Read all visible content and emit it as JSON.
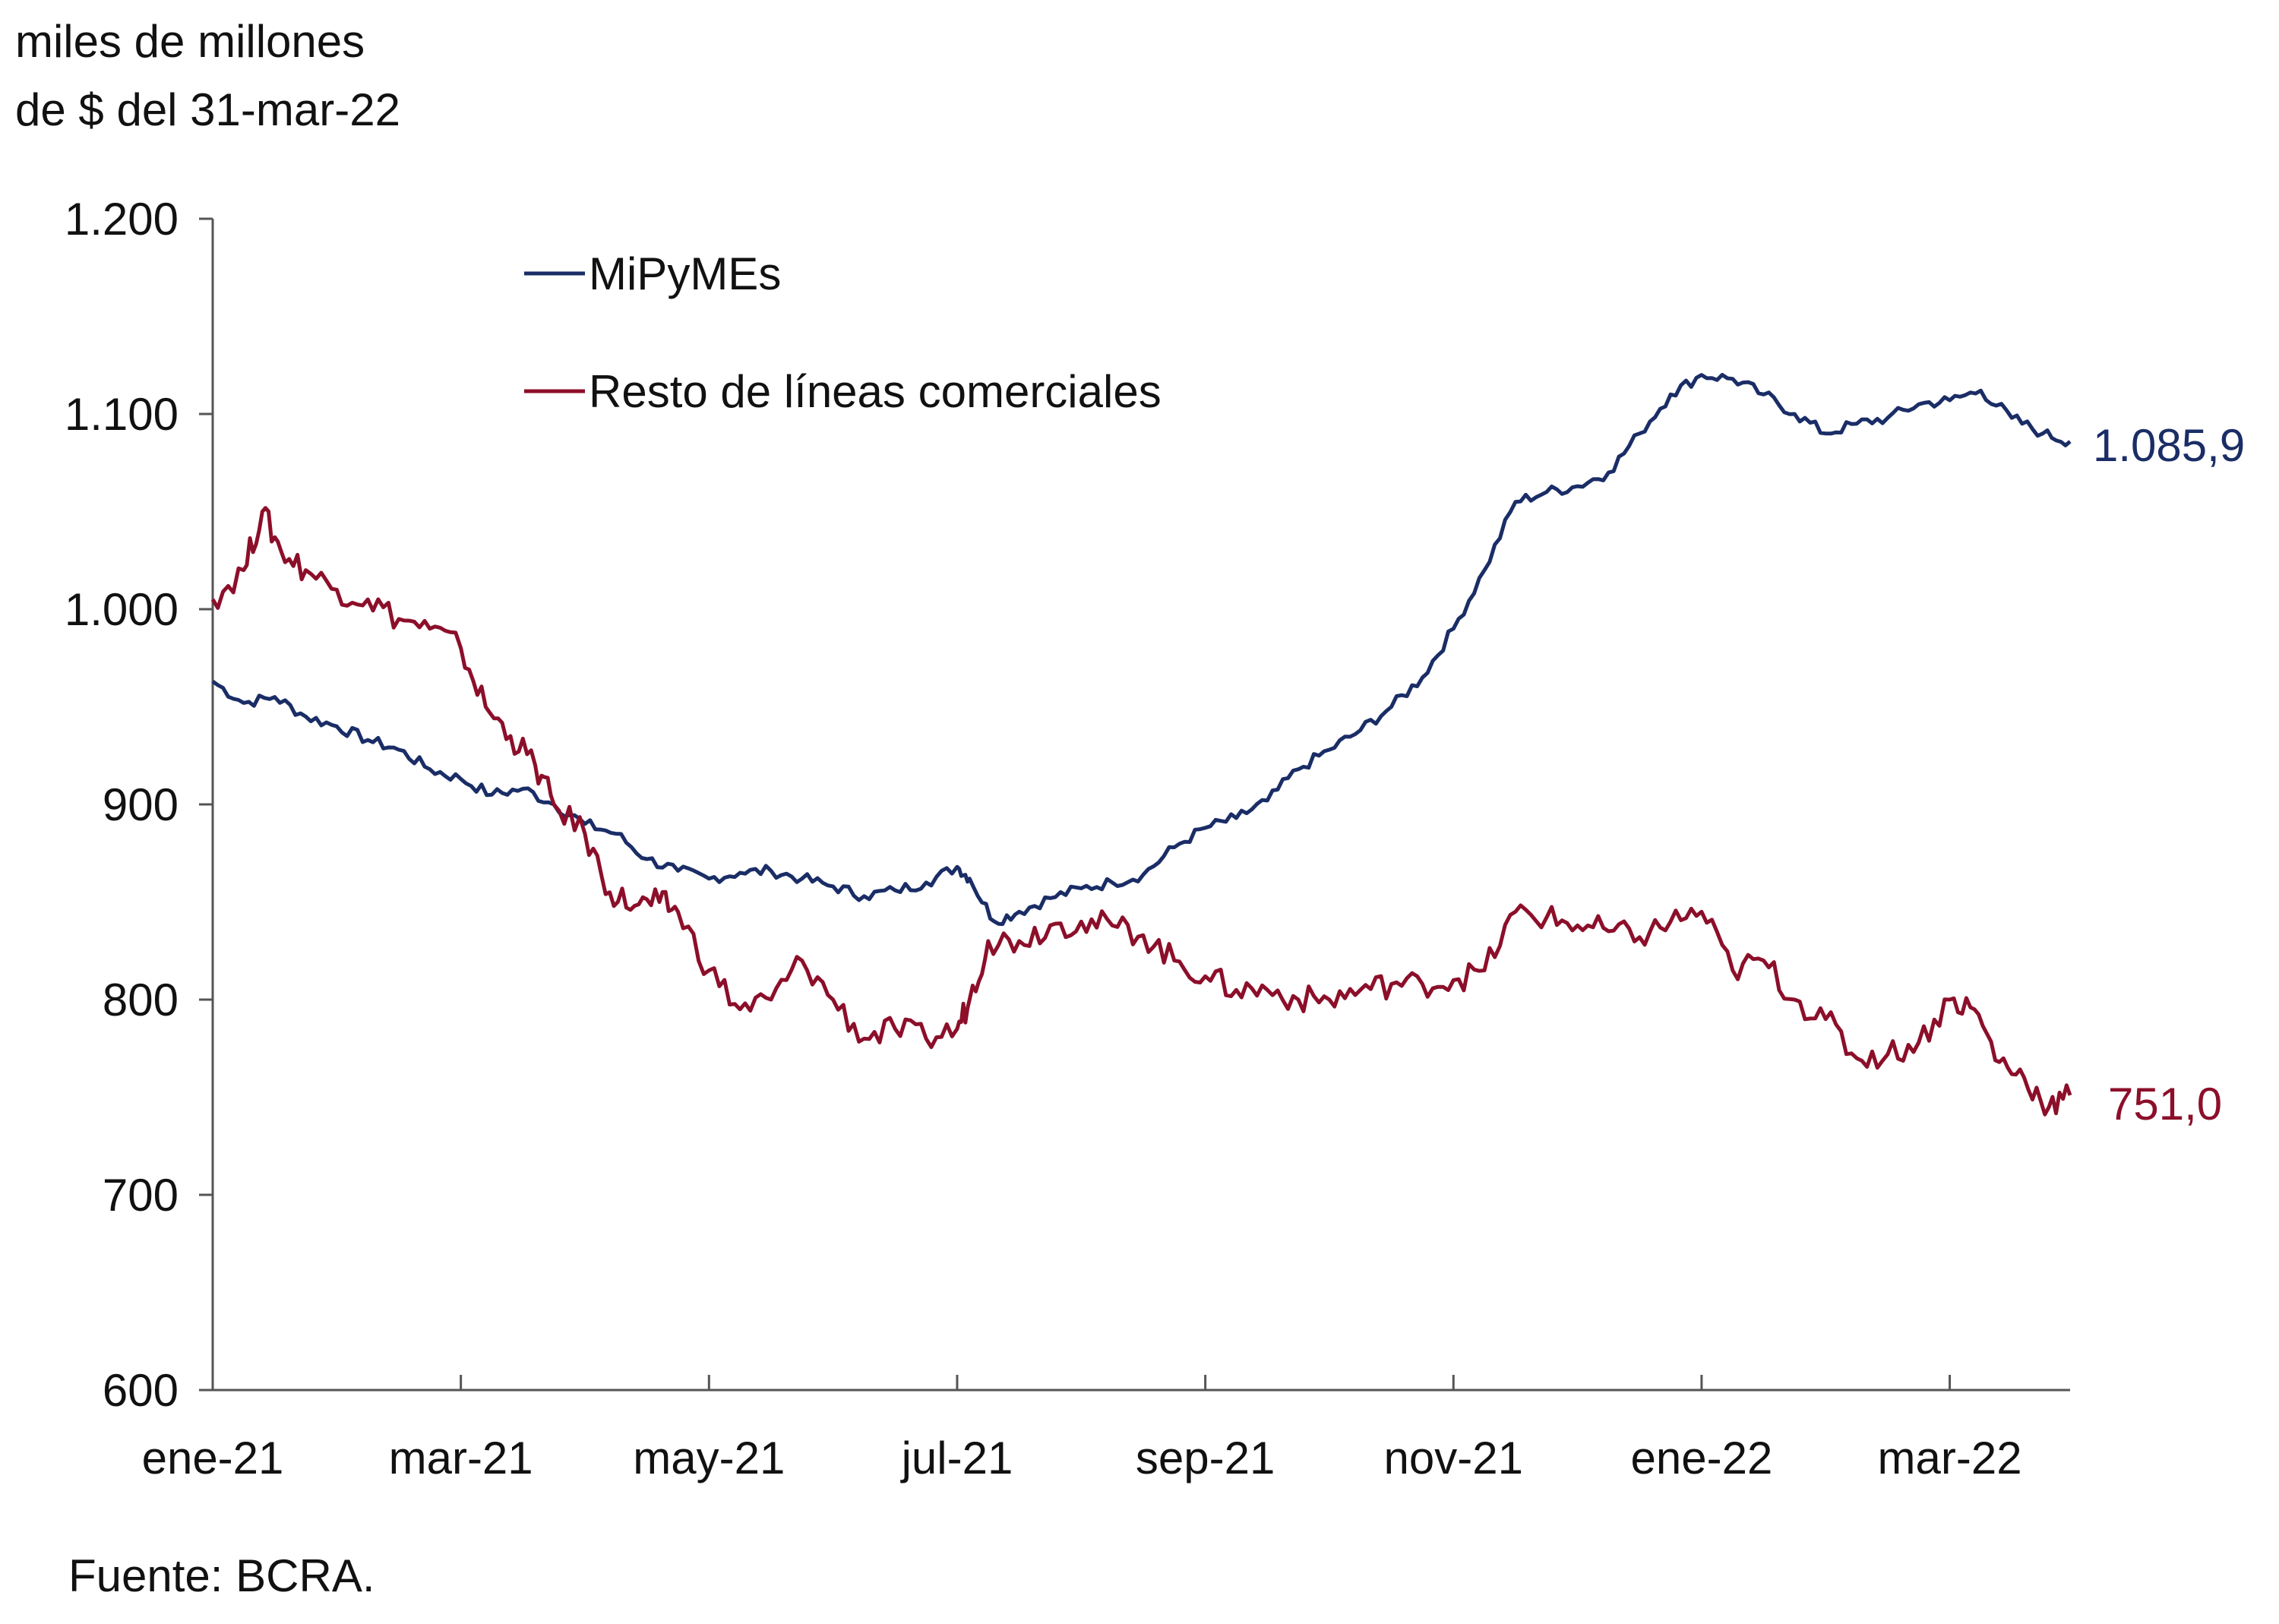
{
  "chart_data": {
    "type": "line",
    "title": "",
    "ylabel_line1": "miles de millones",
    "ylabel_line2": "de $ del 31-mar-22",
    "xlabel": "",
    "ylim": [
      600,
      1200
    ],
    "y_ticks": [
      600,
      700,
      800,
      900,
      1000,
      1100,
      1200
    ],
    "y_tick_labels": [
      "600",
      "700",
      "800",
      "900",
      "1.000",
      "1.100",
      "1.200"
    ],
    "x_range_months": [
      0,
      14.97
    ],
    "x_ticks": [
      {
        "month": 0,
        "label": "ene-21"
      },
      {
        "month": 2,
        "label": "mar-21"
      },
      {
        "month": 4,
        "label": "may-21"
      },
      {
        "month": 6,
        "label": "jul-21"
      },
      {
        "month": 8,
        "label": "sep-21"
      },
      {
        "month": 10,
        "label": "nov-21"
      },
      {
        "month": 12,
        "label": "ene-22"
      },
      {
        "month": 14,
        "label": "mar-22"
      }
    ],
    "legend": [
      "MiPyMEs",
      "Resto de líneas comerciales"
    ],
    "legend_position": "top-left",
    "series": [
      {
        "name": "MiPyMEs",
        "color": "#1a2d66",
        "end_label": "1.085,9",
        "points": [
          [
            0.0,
            963
          ],
          [
            0.25,
            952
          ],
          [
            0.5,
            955
          ],
          [
            0.75,
            945
          ],
          [
            1.0,
            940
          ],
          [
            1.25,
            933
          ],
          [
            1.5,
            928
          ],
          [
            1.75,
            918
          ],
          [
            2.0,
            913
          ],
          [
            2.25,
            905
          ],
          [
            2.5,
            908
          ],
          [
            2.75,
            900
          ],
          [
            3.0,
            890
          ],
          [
            3.25,
            885
          ],
          [
            3.5,
            872
          ],
          [
            3.75,
            866
          ],
          [
            4.0,
            862
          ],
          [
            4.25,
            865
          ],
          [
            4.5,
            866
          ],
          [
            4.75,
            862
          ],
          [
            5.0,
            858
          ],
          [
            5.25,
            853
          ],
          [
            5.5,
            856
          ],
          [
            5.75,
            860
          ],
          [
            6.0,
            868
          ],
          [
            6.1,
            862
          ],
          [
            6.3,
            840
          ],
          [
            6.5,
            845
          ],
          [
            6.75,
            852
          ],
          [
            7.0,
            857
          ],
          [
            7.25,
            860
          ],
          [
            7.5,
            864
          ],
          [
            7.75,
            878
          ],
          [
            8.0,
            888
          ],
          [
            8.25,
            893
          ],
          [
            8.5,
            902
          ],
          [
            8.75,
            918
          ],
          [
            9.0,
            928
          ],
          [
            9.25,
            938
          ],
          [
            9.5,
            950
          ],
          [
            9.75,
            965
          ],
          [
            10.0,
            990
          ],
          [
            10.25,
            1020
          ],
          [
            10.5,
            1055
          ],
          [
            10.75,
            1060
          ],
          [
            11.0,
            1063
          ],
          [
            11.25,
            1070
          ],
          [
            11.5,
            1090
          ],
          [
            11.75,
            1110
          ],
          [
            12.0,
            1120
          ],
          [
            12.25,
            1118
          ],
          [
            12.5,
            1110
          ],
          [
            12.75,
            1100
          ],
          [
            13.0,
            1090
          ],
          [
            13.25,
            1095
          ],
          [
            13.5,
            1098
          ],
          [
            13.75,
            1105
          ],
          [
            14.0,
            1107
          ],
          [
            14.25,
            1112
          ],
          [
            14.5,
            1098
          ],
          [
            14.75,
            1090
          ],
          [
            14.97,
            1085.9
          ]
        ]
      },
      {
        "name": "Resto de líneas comerciales",
        "color": "#8c0f2a",
        "end_label": "751,0",
        "points": [
          [
            0.0,
            1005
          ],
          [
            0.25,
            1020
          ],
          [
            0.4,
            1050
          ],
          [
            0.55,
            1030
          ],
          [
            0.75,
            1020
          ],
          [
            1.0,
            1010
          ],
          [
            1.25,
            1005
          ],
          [
            1.5,
            995
          ],
          [
            1.75,
            990
          ],
          [
            2.0,
            980
          ],
          [
            2.2,
            950
          ],
          [
            2.4,
            935
          ],
          [
            2.6,
            920
          ],
          [
            2.75,
            900
          ],
          [
            3.0,
            885
          ],
          [
            3.2,
            855
          ],
          [
            3.4,
            848
          ],
          [
            3.6,
            850
          ],
          [
            3.75,
            845
          ],
          [
            4.0,
            815
          ],
          [
            4.25,
            795
          ],
          [
            4.5,
            800
          ],
          [
            4.75,
            820
          ],
          [
            5.0,
            800
          ],
          [
            5.25,
            780
          ],
          [
            5.5,
            785
          ],
          [
            5.75,
            780
          ],
          [
            6.0,
            785
          ],
          [
            6.1,
            800
          ],
          [
            6.25,
            830
          ],
          [
            6.5,
            830
          ],
          [
            6.75,
            838
          ],
          [
            7.0,
            840
          ],
          [
            7.25,
            838
          ],
          [
            7.5,
            833
          ],
          [
            7.75,
            820
          ],
          [
            8.0,
            812
          ],
          [
            8.25,
            805
          ],
          [
            8.5,
            805
          ],
          [
            8.75,
            800
          ],
          [
            9.0,
            800
          ],
          [
            9.25,
            805
          ],
          [
            9.5,
            808
          ],
          [
            9.75,
            808
          ],
          [
            10.0,
            810
          ],
          [
            10.25,
            815
          ],
          [
            10.5,
            845
          ],
          [
            10.75,
            842
          ],
          [
            11.0,
            838
          ],
          [
            11.25,
            835
          ],
          [
            11.5,
            832
          ],
          [
            11.75,
            840
          ],
          [
            12.0,
            845
          ],
          [
            12.25,
            815
          ],
          [
            12.5,
            820
          ],
          [
            12.75,
            800
          ],
          [
            13.0,
            790
          ],
          [
            13.25,
            770
          ],
          [
            13.5,
            772
          ],
          [
            13.75,
            778
          ],
          [
            14.0,
            800
          ],
          [
            14.2,
            795
          ],
          [
            14.4,
            768
          ],
          [
            14.6,
            760
          ],
          [
            14.8,
            745
          ],
          [
            14.97,
            751.0
          ]
        ]
      }
    ]
  },
  "footer": {
    "source": "Fuente: BCRA."
  }
}
